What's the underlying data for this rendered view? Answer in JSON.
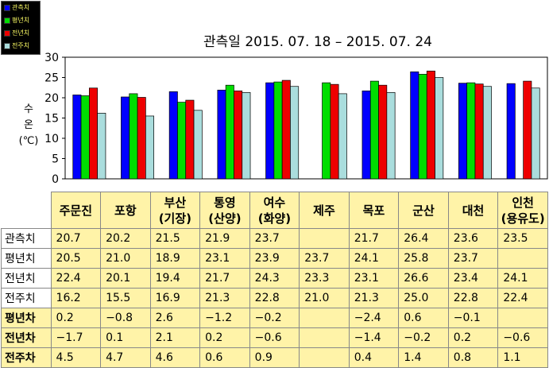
{
  "legend": {
    "items": [
      {
        "label": "관측치",
        "color": "#0000ff"
      },
      {
        "label": "평년치",
        "color": "#00dd00"
      },
      {
        "label": "전년치",
        "color": "#ee0000"
      },
      {
        "label": "전주치",
        "color": "#aadddd"
      }
    ]
  },
  "chart_data": {
    "type": "bar",
    "title": "관측일 2015. 07. 18 – 2015. 07. 24",
    "ylabel_lines": [
      "수",
      "온",
      "(℃)"
    ],
    "ylim": [
      0,
      30
    ],
    "yticks": [
      0,
      5,
      10,
      15,
      20,
      25,
      30
    ],
    "grid": false,
    "legend_position": "top-left",
    "categories": [
      "주문진",
      "포항",
      "부산 (기장)",
      "통영 (산양)",
      "여수 (화양)",
      "제주",
      "목포",
      "군산",
      "대천",
      "인천 (용유도)"
    ],
    "series": [
      {
        "name": "관측치",
        "color": "#0000ff",
        "values": [
          20.7,
          20.2,
          21.5,
          21.9,
          23.7,
          null,
          21.7,
          26.4,
          23.6,
          23.5
        ]
      },
      {
        "name": "평년치",
        "color": "#00dd00",
        "values": [
          20.5,
          21.0,
          18.9,
          23.1,
          23.9,
          23.7,
          24.1,
          25.8,
          23.7,
          null
        ]
      },
      {
        "name": "전년치",
        "color": "#ee0000",
        "values": [
          22.4,
          20.1,
          19.4,
          21.7,
          24.3,
          23.3,
          23.1,
          26.6,
          23.4,
          24.1
        ]
      },
      {
        "name": "전주치",
        "color": "#aadddd",
        "values": [
          16.2,
          15.5,
          16.9,
          21.3,
          22.8,
          21.0,
          21.3,
          25.0,
          22.8,
          22.4
        ]
      }
    ]
  },
  "table": {
    "headers": [
      [
        "주문진"
      ],
      [
        "포항"
      ],
      [
        "부산",
        "(기장)"
      ],
      [
        "통영",
        "(산양)"
      ],
      [
        "여수",
        "(화양)"
      ],
      [
        "제주"
      ],
      [
        "목포"
      ],
      [
        "군산"
      ],
      [
        "대천"
      ],
      [
        "인천",
        "(용유도)"
      ]
    ],
    "rows": [
      {
        "label": "관측치",
        "diff": false,
        "cells": [
          "20.7",
          "20.2",
          "21.5",
          "21.9",
          "23.7",
          "",
          "21.7",
          "26.4",
          "23.6",
          "23.5"
        ]
      },
      {
        "label": "평년치",
        "diff": false,
        "cells": [
          "20.5",
          "21.0",
          "18.9",
          "23.1",
          "23.9",
          "23.7",
          "24.1",
          "25.8",
          "23.7",
          ""
        ]
      },
      {
        "label": "전년치",
        "diff": false,
        "cells": [
          "22.4",
          "20.1",
          "19.4",
          "21.7",
          "24.3",
          "23.3",
          "23.1",
          "26.6",
          "23.4",
          "24.1"
        ]
      },
      {
        "label": "전주치",
        "diff": false,
        "cells": [
          "16.2",
          "15.5",
          "16.9",
          "21.3",
          "22.8",
          "21.0",
          "21.3",
          "25.0",
          "22.8",
          "22.4"
        ]
      },
      {
        "label": "평년차",
        "diff": true,
        "cells": [
          "0.2",
          "−0.8",
          "2.6",
          "−1.2",
          "−0.2",
          "",
          "−2.4",
          "0.6",
          "−0.1",
          ""
        ]
      },
      {
        "label": "전년차",
        "diff": true,
        "cells": [
          "−1.7",
          "0.1",
          "2.1",
          "0.2",
          "−0.6",
          "",
          "−1.4",
          "−0.2",
          "0.2",
          "−0.6"
        ]
      },
      {
        "label": "전주차",
        "diff": true,
        "cells": [
          "4.5",
          "4.7",
          "4.6",
          "0.6",
          "0.9",
          "",
          "0.4",
          "1.4",
          "0.8",
          "1.1"
        ]
      }
    ]
  }
}
